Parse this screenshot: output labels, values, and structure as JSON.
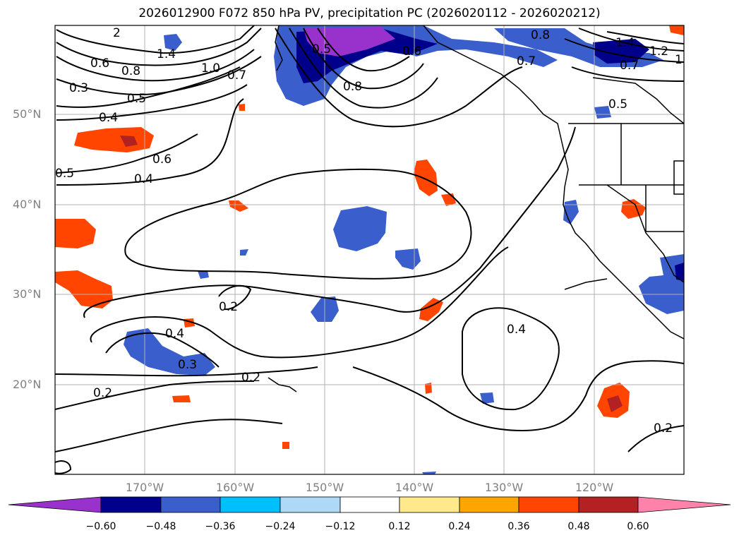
{
  "title": "2026012900 F072 850 hPa PV, precipitation PC (2026020112 - 2026020212)",
  "lat_labels": [
    "50°N",
    "40°N",
    "30°N",
    "20°N"
  ],
  "lon_labels": [
    "170°W",
    "160°W",
    "150°W",
    "140°W",
    "130°W",
    "120°W"
  ],
  "contour_labels": [
    "1.4",
    "0.6",
    "0.8",
    "1.0",
    "0.7",
    "0.3",
    "0.5",
    "0.4",
    "0.6",
    "0.5",
    "0.4",
    "0.5",
    "0.8",
    "0.6",
    "0.8",
    "0.7",
    "0.7",
    "1.4",
    "1.2",
    "0.5",
    "0.2",
    "0.4",
    "0.3",
    "0.2",
    "0.2",
    "0.4",
    "0.2",
    "1",
    "2"
  ],
  "colorbar": {
    "ticks": [
      "−0.60",
      "−0.48",
      "−0.36",
      "−0.24",
      "−0.12",
      "0.12",
      "0.24",
      "0.36",
      "0.48",
      "0.60"
    ],
    "colors": [
      "#9932cc",
      "#00008b",
      "#3a5fcd",
      "#00bfff",
      "#add8f6",
      "#ffffff",
      "#ffe98a",
      "#ffa500",
      "#ff4500",
      "#b22222",
      "#ff82ab"
    ]
  }
}
